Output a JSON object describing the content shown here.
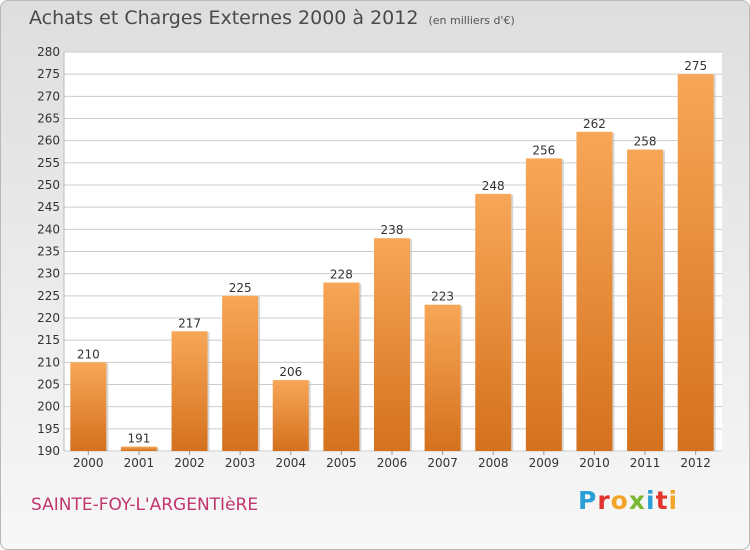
{
  "header": {
    "title": "Achats et Charges Externes 2000 à 2012",
    "subtitle": "(en milliers d'€)"
  },
  "footer": {
    "commune": "SAINTE-FOY-L'ARGENTIèRE",
    "logo": {
      "letters": [
        "P",
        "r",
        "o",
        "x",
        "i",
        "t",
        "i"
      ],
      "colors": [
        "#2a9fd8",
        "#e2342c",
        "#f2a52a",
        "#7ab833",
        "#2a9fd8",
        "#e2342c",
        "#f2a52a"
      ]
    }
  },
  "colors": {
    "bar_top": "#f7a757",
    "bar_bottom": "#d4711e",
    "grid": "#cccccc",
    "axis_text": "#333333"
  },
  "chart_data": {
    "type": "bar",
    "categories": [
      "2000",
      "2001",
      "2002",
      "2003",
      "2004",
      "2005",
      "2006",
      "2007",
      "2008",
      "2009",
      "2010",
      "2011",
      "2012"
    ],
    "values": [
      210,
      191,
      217,
      225,
      206,
      228,
      238,
      223,
      248,
      256,
      262,
      258,
      275
    ],
    "data_labels": [
      "210",
      "191",
      "217",
      "225",
      "206",
      "228",
      "238",
      "223",
      "248",
      "256",
      "262",
      "258",
      "275"
    ],
    "ylim": [
      190,
      280
    ],
    "yticks": [
      "190",
      "195",
      "200",
      "205",
      "210",
      "215",
      "220",
      "225",
      "230",
      "235",
      "240",
      "245",
      "250",
      "255",
      "260",
      "265",
      "270",
      "275",
      "280"
    ],
    "ytick_values": [
      190,
      195,
      200,
      205,
      210,
      215,
      220,
      225,
      230,
      235,
      240,
      245,
      250,
      255,
      260,
      265,
      270,
      275,
      280
    ],
    "grid": true,
    "legend": "none"
  }
}
